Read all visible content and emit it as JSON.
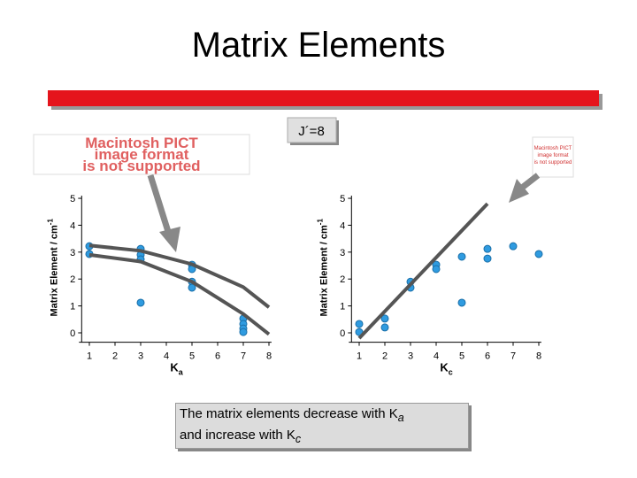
{
  "slide": {
    "title": "Matrix Elements",
    "label": "J´=8",
    "pict_left": [
      "Macintosh PICT",
      "image format",
      "is not supported"
    ],
    "pict_right": [
      "Macintosh PICT",
      "image format",
      "is not supported"
    ],
    "caption": [
      "The matrix elements decrease with K",
      "a",
      "and increase with K",
      "c"
    ]
  },
  "chart_data": [
    {
      "type": "scatter",
      "xlabel": "K",
      "xlabel_sub": "a",
      "ylabel": "Matrix Element / cm",
      "ylabel_sup": "-1",
      "xlim": [
        0.7,
        8.1
      ],
      "ylim": [
        -0.25,
        5.1
      ],
      "xticks": [
        1,
        2,
        3,
        4,
        5,
        6,
        7,
        8
      ],
      "yticks": [
        0,
        1,
        2,
        3,
        4,
        5
      ],
      "series": [
        {
          "mode": "markers",
          "color": "#2f9be0",
          "x": [
            1,
            1,
            3,
            3,
            3,
            3,
            5,
            5,
            5,
            5,
            7,
            7,
            7,
            7
          ],
          "values": [
            3.22,
            2.93,
            3.12,
            2.9,
            2.73,
            1.12,
            2.53,
            2.37,
            1.9,
            1.68,
            0.53,
            0.33,
            0.16,
            0.03
          ]
        },
        {
          "mode": "line",
          "color": "#555555",
          "x": [
            1,
            3,
            5,
            7,
            8
          ],
          "values": [
            3.25,
            3.05,
            2.55,
            1.7,
            0.95
          ]
        },
        {
          "mode": "line",
          "color": "#555555",
          "x": [
            1,
            3,
            5,
            7,
            8
          ],
          "values": [
            2.9,
            2.65,
            1.9,
            0.7,
            -0.05
          ]
        }
      ]
    },
    {
      "type": "scatter",
      "xlabel": "K",
      "xlabel_sub": "c",
      "ylabel": "Matrix Element / cm",
      "ylabel_sup": "-1",
      "xlim": [
        0.7,
        8.1
      ],
      "ylim": [
        -0.25,
        5.1
      ],
      "xticks": [
        1,
        2,
        3,
        4,
        5,
        6,
        7,
        8
      ],
      "yticks": [
        0,
        1,
        2,
        3,
        4,
        5
      ],
      "series": [
        {
          "mode": "markers",
          "color": "#2f9be0",
          "x": [
            1,
            1,
            2,
            2,
            3,
            3,
            4,
            4,
            5,
            5,
            6,
            6,
            7,
            8
          ],
          "values": [
            0.33,
            0.03,
            0.53,
            0.2,
            1.9,
            1.68,
            2.53,
            2.37,
            2.83,
            1.12,
            3.12,
            2.76,
            3.22,
            2.93
          ]
        },
        {
          "mode": "line",
          "color": "#555555",
          "x": [
            1,
            6
          ],
          "values": [
            -0.2,
            4.8
          ]
        }
      ]
    }
  ]
}
